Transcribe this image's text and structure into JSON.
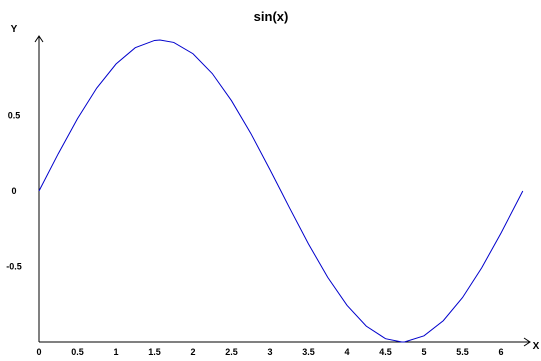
{
  "chart_data": {
    "type": "line",
    "title": "sin(x)",
    "xlabel": "X",
    "ylabel": "Y",
    "xlim": [
      0,
      6.283
    ],
    "ylim": [
      -1,
      1
    ],
    "grid": false,
    "legend": "none",
    "x_ticks": [
      "0",
      "0.5",
      "1",
      "1.5",
      "2",
      "2.5",
      "3",
      "3.5",
      "4",
      "4.5",
      "5",
      "5.5",
      "6"
    ],
    "y_ticks": [
      "0.5",
      "0",
      "-0.5"
    ],
    "series": [
      {
        "color": "#0000cc",
        "x": [
          0,
          0.25,
          0.5,
          0.75,
          1,
          1.25,
          1.5,
          1.571,
          1.75,
          2,
          2.25,
          2.5,
          2.75,
          3,
          3.142,
          3.25,
          3.5,
          3.75,
          4,
          4.25,
          4.5,
          4.712,
          4.75,
          5,
          5.25,
          5.5,
          5.75,
          6,
          6.283
        ],
        "y": [
          0,
          0.247,
          0.479,
          0.682,
          0.841,
          0.949,
          0.997,
          1,
          0.984,
          0.909,
          0.778,
          0.598,
          0.382,
          0.141,
          0,
          -0.108,
          -0.351,
          -0.572,
          -0.757,
          -0.895,
          -0.978,
          -1,
          -0.999,
          -0.959,
          -0.859,
          -0.706,
          -0.508,
          -0.279,
          0
        ]
      }
    ]
  }
}
